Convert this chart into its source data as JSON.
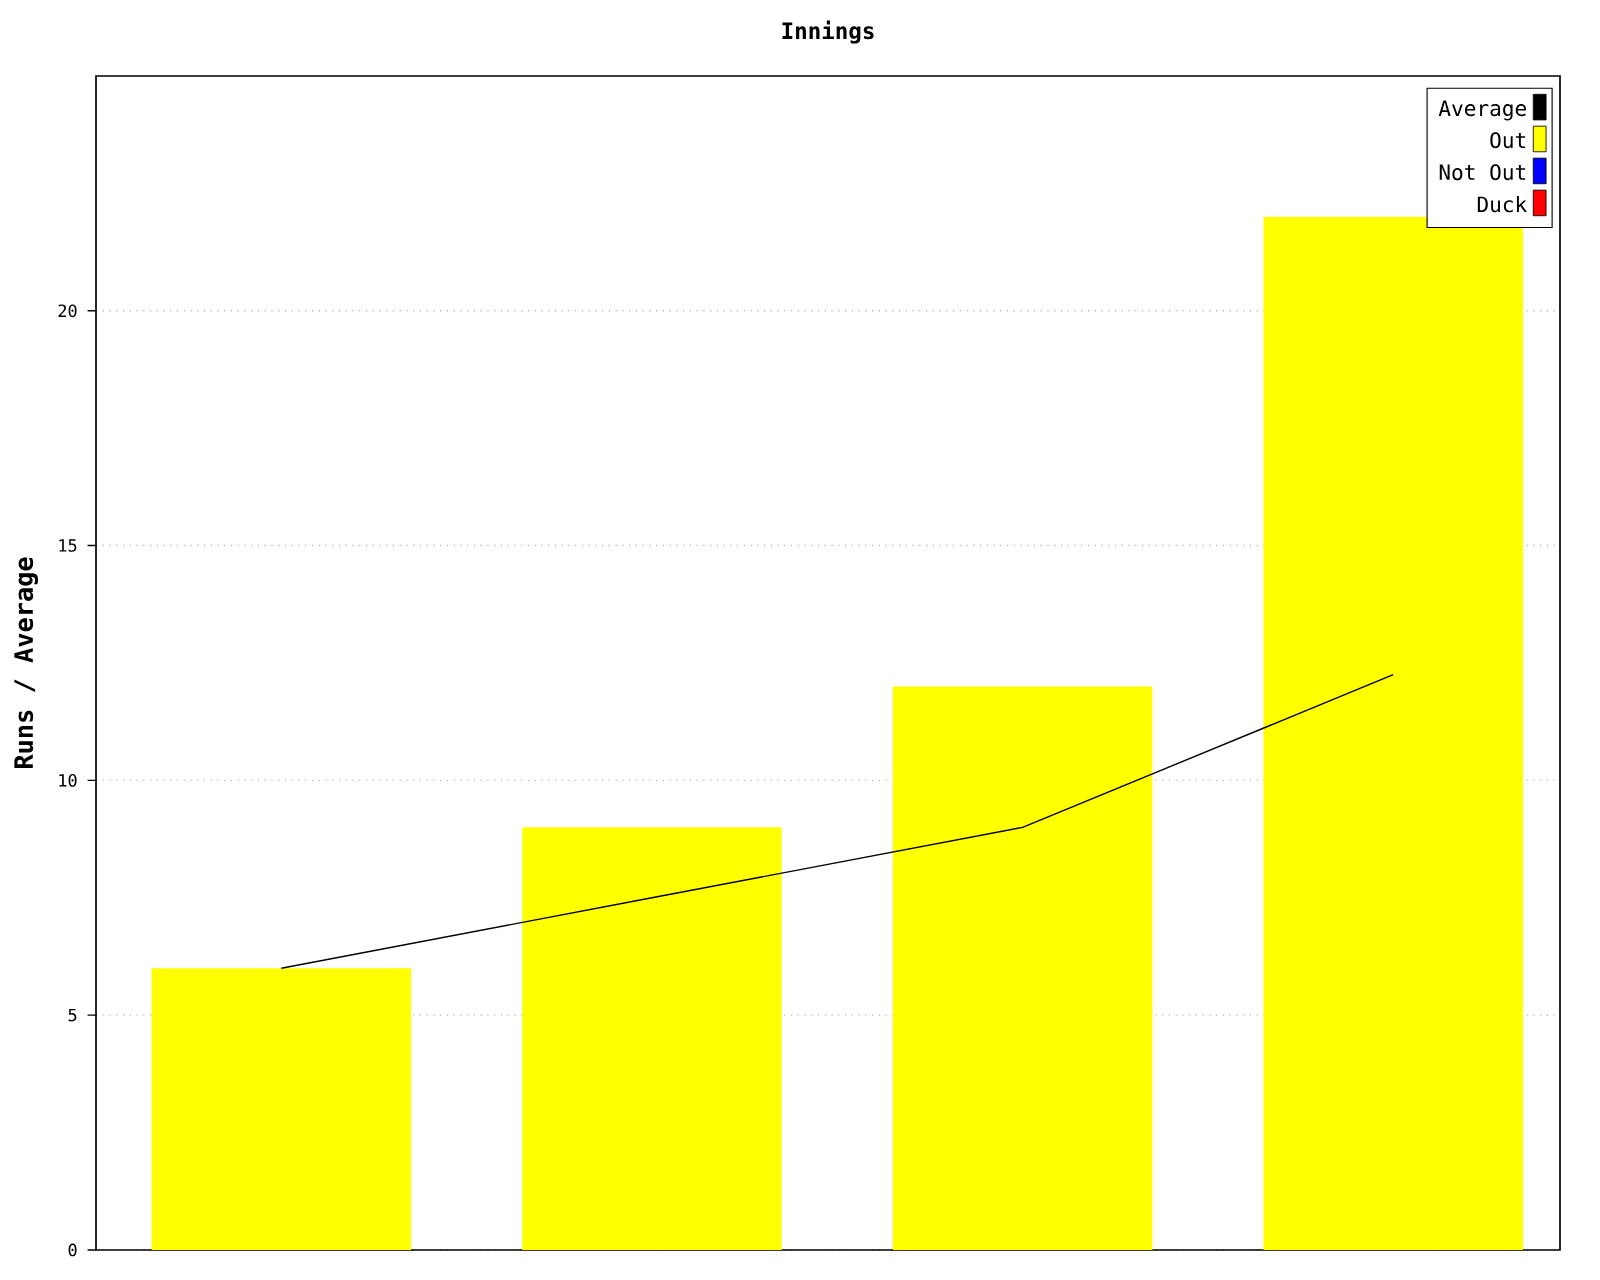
{
  "chart_data": {
    "type": "bar",
    "title": "Innings",
    "ylabel": "Runs / Average",
    "categories": [
      null,
      null,
      null,
      null
    ],
    "series": [
      {
        "name": "Average",
        "type": "line",
        "color": "#000000",
        "values": [
          6,
          7.5,
          9,
          12.25
        ]
      },
      {
        "name": "Out",
        "color": "#ffff00",
        "values": [
          6,
          9,
          12,
          22
        ]
      },
      {
        "name": "Not Out",
        "type": "bar",
        "color": "#0000ff",
        "values": [
          null,
          null,
          null,
          null
        ]
      },
      {
        "name": "Duck",
        "type": "bar",
        "color": "#ff0000",
        "values": [
          null,
          null,
          null,
          null
        ]
      }
    ],
    "ylim": [
      0,
      25
    ],
    "yticks": [
      0,
      5,
      10,
      15,
      20
    ],
    "grid": "y",
    "legend": "top right",
    "tick_labels": "y"
  }
}
